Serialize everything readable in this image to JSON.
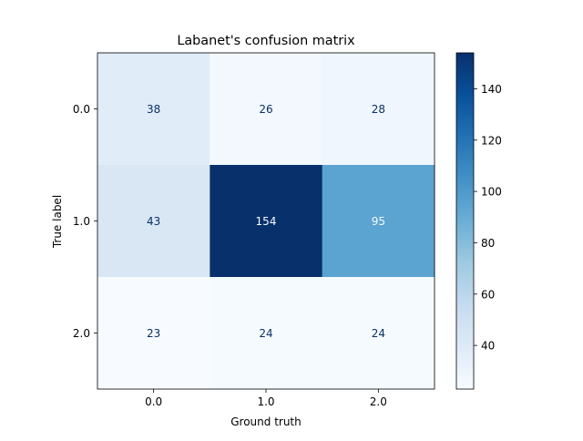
{
  "chart_data": {
    "type": "heatmap",
    "title": "Labanet's confusion matrix",
    "xlabel": "Ground truth",
    "ylabel": "True label",
    "x_categories": [
      "0.0",
      "1.0",
      "2.0"
    ],
    "y_categories": [
      "0.0",
      "1.0",
      "2.0"
    ],
    "values": [
      [
        38,
        26,
        28
      ],
      [
        43,
        154,
        95
      ],
      [
        23,
        24,
        24
      ]
    ],
    "colormap": "Blues",
    "colorbar": {
      "min": 23,
      "max": 154,
      "ticks": [
        40,
        60,
        80,
        100,
        120,
        140
      ]
    }
  }
}
